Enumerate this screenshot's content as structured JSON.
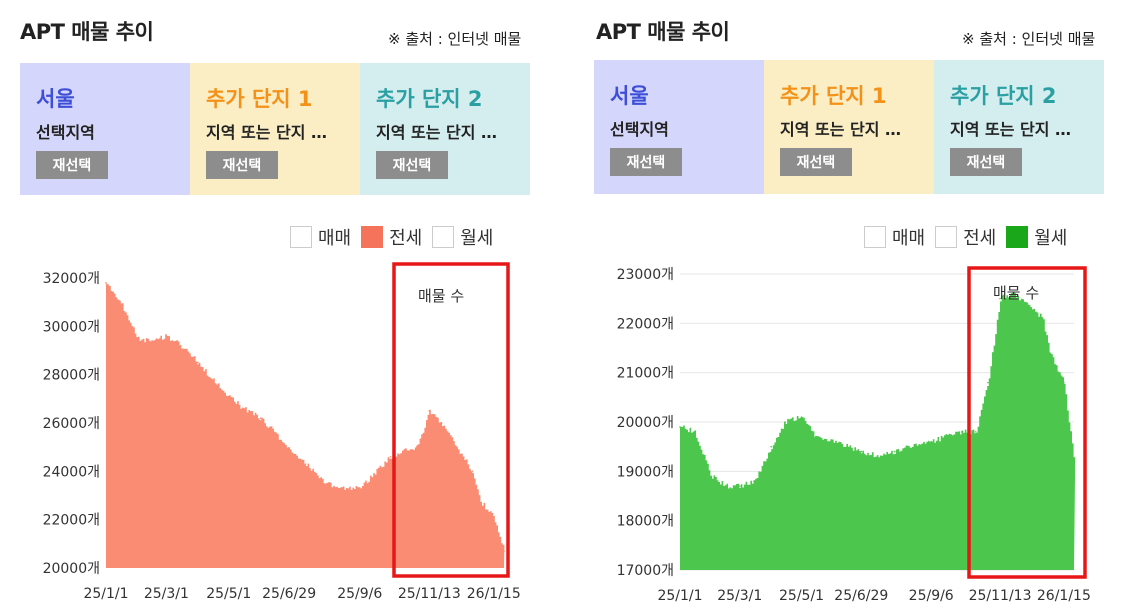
{
  "panels": [
    {
      "title": "APT 매물 추이",
      "source": "※ 출처 : 인터넷 매물",
      "cards": [
        {
          "name": "서울",
          "sub": "선택지역",
          "button": "재선택"
        },
        {
          "name": "추가 단지 1",
          "sub": "지역 또는 단지 …",
          "button": "재선택"
        },
        {
          "name": "추가 단지 2",
          "sub": "지역 또는 단지 …",
          "button": "재선택"
        }
      ],
      "legend": [
        {
          "label": "매매",
          "checked": false
        },
        {
          "label": "전세",
          "checked": true
        },
        {
          "label": "월세",
          "checked": false
        }
      ],
      "checked_color": "#f4735a"
    },
    {
      "title": "APT 매물 추이",
      "source": "※ 출처 : 인터넷 매물",
      "cards": [
        {
          "name": "서울",
          "sub": "선택지역",
          "button": "재선택"
        },
        {
          "name": "추가 단지 1",
          "sub": "지역 또는 단지 …",
          "button": "재선택"
        },
        {
          "name": "추가 단지 2",
          "sub": "지역 또는 단지 …",
          "button": "재선택"
        }
      ],
      "legend": [
        {
          "label": "매매",
          "checked": false
        },
        {
          "label": "전세",
          "checked": false
        },
        {
          "label": "월세",
          "checked": true
        }
      ],
      "checked_color": "#1aa81a"
    }
  ],
  "chart_data": [
    {
      "type": "area",
      "series": [
        {
          "name": "전세",
          "color": "#fa8c73",
          "x": [
            "25/1/1",
            "25/1/15",
            "25/2/1",
            "25/2/15",
            "25/3/1",
            "25/3/15",
            "25/4/1",
            "25/4/15",
            "25/5/1",
            "25/5/15",
            "25/6/1",
            "25/6/15",
            "25/6/29",
            "25/7/15",
            "25/8/1",
            "25/8/15",
            "25/9/6",
            "25/9/20",
            "25/10/6",
            "25/10/20",
            "25/11/1",
            "25/11/13",
            "25/11/25",
            "25/12/10",
            "25/12/25",
            "26/1/1",
            "26/1/15",
            "26/1/25"
          ],
          "values": [
            31800,
            31000,
            29500,
            29400,
            29600,
            29200,
            28500,
            27800,
            27100,
            26600,
            26200,
            25600,
            24900,
            24300,
            23600,
            23300,
            23300,
            23900,
            24600,
            24900,
            25000,
            26500,
            26000,
            25000,
            24000,
            22800,
            22100,
            20700
          ]
        }
      ],
      "yticks": [
        "20000개",
        "22000개",
        "24000개",
        "26000개",
        "28000개",
        "30000개",
        "32000개"
      ],
      "ylim": [
        20000,
        32000
      ],
      "xticks": [
        "25/1/1",
        "25/3/1",
        "25/5/1",
        "25/6/29",
        "25/9/6",
        "25/11/13",
        "26/1/15"
      ],
      "annotation": "매물 수",
      "highlight_from": "25/11/1",
      "grid": false
    },
    {
      "type": "area",
      "series": [
        {
          "name": "월세",
          "color": "#4cc64c",
          "x": [
            "25/1/1",
            "25/1/15",
            "25/2/1",
            "25/2/15",
            "25/3/1",
            "25/3/15",
            "25/4/1",
            "25/4/15",
            "25/5/1",
            "25/5/15",
            "25/6/1",
            "25/6/15",
            "25/6/29",
            "25/7/15",
            "25/8/1",
            "25/8/15",
            "25/9/6",
            "25/9/20",
            "25/10/6",
            "25/10/20",
            "25/11/1",
            "25/11/13",
            "25/11/25",
            "25/12/10",
            "25/12/25",
            "26/1/1",
            "26/1/15",
            "26/1/25"
          ],
          "values": [
            19900,
            19800,
            18900,
            18700,
            18700,
            18800,
            19500,
            20000,
            20100,
            19700,
            19600,
            19500,
            19400,
            19300,
            19400,
            19500,
            19600,
            19700,
            19800,
            19800,
            20800,
            22500,
            22600,
            22400,
            22100,
            21400,
            20800,
            19200
          ]
        }
      ],
      "yticks": [
        "17000개",
        "18000개",
        "19000개",
        "20000개",
        "21000개",
        "22000개",
        "23000개"
      ],
      "ylim": [
        17000,
        23000
      ],
      "xticks": [
        "25/1/1",
        "25/3/1",
        "25/5/1",
        "25/6/29",
        "25/9/6",
        "25/11/13",
        "26/1/15"
      ],
      "annotation": "매물 수",
      "highlight_from": "25/11/1",
      "grid": true
    }
  ],
  "highlight_color": "#e81717"
}
